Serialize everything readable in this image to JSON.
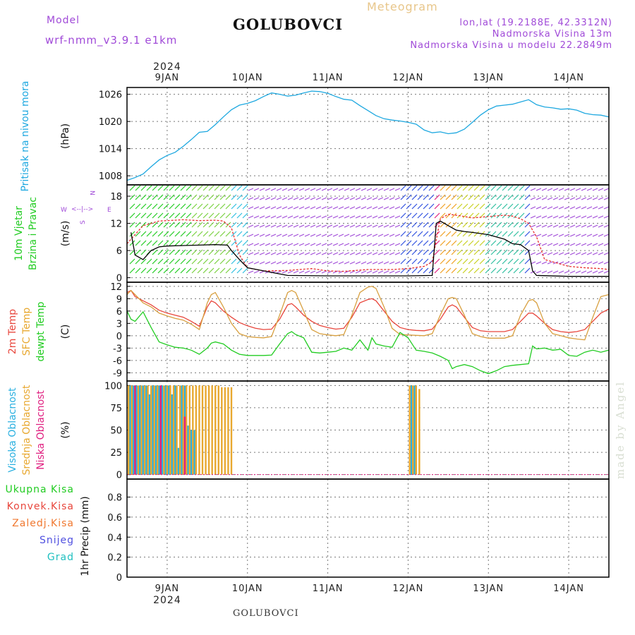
{
  "header": {
    "model_label": "Model",
    "model_name": "wrf-nmm_v3.9.1 e1km",
    "station": "GOLUBOVCI",
    "product": "Meteogram",
    "lonlat": "lon,lat (19.2188E, 42.3312N)",
    "elevation": "Nadmorska Visina 13m",
    "model_elevation": "Nadmorska Visina u modelu 22.2849m"
  },
  "footer": {
    "station": "GOLUBOVCI",
    "watermark": "made by Angel"
  },
  "time_axis": {
    "year": "2024",
    "start_day": 8.5,
    "end_day": 14.5,
    "labels": [
      {
        "day": 9,
        "text": "9JAN"
      },
      {
        "day": 10,
        "text": "10JAN"
      },
      {
        "day": 11,
        "text": "11JAN"
      },
      {
        "day": 12,
        "text": "12JAN"
      },
      {
        "day": 13,
        "text": "13JAN"
      },
      {
        "day": 14,
        "text": "14JAN"
      }
    ]
  },
  "colors": {
    "pressure": "#1ea8e0",
    "temp2m": "#e8463c",
    "sfc": "#d8a040",
    "dewpt": "#22cc22",
    "visoka": "#2ab0e0",
    "srednja": "#e8a830",
    "niska": "#e02080",
    "ukupna": "#22cc22",
    "konvek": "#e8463c",
    "zaledj": "#f07830",
    "snijeg": "#5050e0",
    "grad": "#20c0c0",
    "speed": "#e83030",
    "gust": "#000000",
    "compass": "#a04ad8"
  },
  "chart_data": [
    {
      "type": "line",
      "panel": "pressure",
      "labels": [
        {
          "text": "Pritisak na nivou mora",
          "color": "#1ea8e0"
        }
      ],
      "unit": "(hPa)",
      "ylim": [
        1006,
        1027.5
      ],
      "yticks": [
        1008,
        1014,
        1020,
        1026
      ],
      "series": [
        {
          "key": "slp",
          "color": "#1ea8e0",
          "x": [
            8.5,
            8.6,
            8.7,
            8.8,
            8.9,
            9.0,
            9.1,
            9.2,
            9.3,
            9.4,
            9.5,
            9.6,
            9.7,
            9.8,
            9.9,
            10.0,
            10.1,
            10.2,
            10.3,
            10.4,
            10.5,
            10.6,
            10.7,
            10.8,
            10.9,
            11.0,
            11.1,
            11.2,
            11.3,
            11.4,
            11.5,
            11.6,
            11.7,
            11.8,
            11.9,
            12.0,
            12.1,
            12.2,
            12.3,
            12.4,
            12.5,
            12.6,
            12.7,
            12.8,
            12.9,
            13.0,
            13.1,
            13.2,
            13.3,
            13.4,
            13.5,
            13.6,
            13.7,
            13.8,
            13.9,
            14.0,
            14.1,
            14.2,
            14.3,
            14.4,
            14.5
          ],
          "y": [
            1007.0,
            1007.6,
            1008.4,
            1010.0,
            1011.5,
            1012.5,
            1013.2,
            1014.5,
            1016.0,
            1017.6,
            1017.8,
            1019.3,
            1021.0,
            1022.6,
            1023.6,
            1024.0,
            1024.6,
            1025.5,
            1026.3,
            1026.0,
            1025.6,
            1025.8,
            1026.3,
            1026.7,
            1026.6,
            1026.2,
            1025.5,
            1024.9,
            1024.7,
            1023.5,
            1022.4,
            1021.3,
            1020.6,
            1020.3,
            1020.1,
            1019.8,
            1019.4,
            1018.1,
            1017.5,
            1017.7,
            1017.3,
            1017.5,
            1018.3,
            1019.8,
            1021.4,
            1022.6,
            1023.4,
            1023.6,
            1023.8,
            1024.3,
            1024.8,
            1023.7,
            1023.2,
            1023.0,
            1022.7,
            1022.8,
            1022.5,
            1021.8,
            1021.5,
            1021.4,
            1021.0
          ]
        }
      ]
    },
    {
      "type": "line",
      "panel": "wind",
      "labels": [
        {
          "text": "10m Vjetar",
          "color": "#22cc22"
        },
        {
          "text": "Brzina i Pravac",
          "color": "#22cc22"
        }
      ],
      "unit": "(m/s)",
      "compass": [
        "N",
        "W",
        "E",
        "S",
        "<--|-->"
      ],
      "ylim": [
        -1,
        20.5
      ],
      "yticks": [
        0,
        6,
        12,
        18
      ],
      "series": [
        {
          "key": "speed",
          "color": "#e83030",
          "x": [
            8.5,
            8.6,
            8.7,
            8.8,
            8.9,
            9.0,
            9.2,
            9.4,
            9.6,
            9.7,
            9.8,
            9.9,
            10.0,
            10.2,
            10.5,
            10.8,
            11.0,
            11.2,
            11.5,
            11.8,
            12.0,
            12.2,
            12.3,
            12.4,
            12.5,
            12.6,
            12.7,
            12.8,
            13.0,
            13.2,
            13.3,
            13.4,
            13.5,
            13.6,
            13.7,
            13.8,
            14.0,
            14.2,
            14.4,
            14.5
          ],
          "y": [
            7.5,
            9.5,
            11.5,
            12.0,
            12.5,
            12.6,
            12.8,
            12.6,
            12.7,
            12.5,
            11.0,
            5.0,
            2.2,
            1.5,
            1.6,
            2.0,
            1.5,
            1.4,
            1.8,
            1.8,
            2.0,
            2.5,
            3.5,
            13.0,
            14.0,
            13.8,
            13.5,
            13.2,
            13.5,
            13.8,
            13.6,
            13.0,
            12.0,
            9.0,
            4.0,
            3.5,
            2.5,
            2.2,
            2.0,
            1.8
          ]
        },
        {
          "key": "gust",
          "color": "#000000",
          "x": [
            8.55,
            8.6,
            8.7,
            8.8,
            8.9,
            9.0,
            9.2,
            9.4,
            9.6,
            9.75,
            9.8,
            9.9,
            10.0,
            10.5,
            11.0,
            11.5,
            12.0,
            12.3,
            12.35,
            12.4,
            12.5,
            12.6,
            12.7,
            12.8,
            13.0,
            13.2,
            13.3,
            13.4,
            13.5,
            13.55,
            13.6,
            14.0,
            14.5
          ],
          "y": [
            10.0,
            5.0,
            4.0,
            6.0,
            6.8,
            7.0,
            7.1,
            7.2,
            7.3,
            7.2,
            6.0,
            4.0,
            2.2,
            0.5,
            0.4,
            0.4,
            0.4,
            0.5,
            12.0,
            12.5,
            11.5,
            10.5,
            10.2,
            10.0,
            9.5,
            8.5,
            7.5,
            7.3,
            6.0,
            1.5,
            0.5,
            0.3,
            0.3
          ]
        }
      ]
    },
    {
      "type": "line",
      "panel": "temperature",
      "labels": [
        {
          "text": "2m Temp",
          "color": "#e8463c"
        },
        {
          "text": "SFC Temp",
          "color": "#e8a830"
        },
        {
          "text": "dewpt Temp",
          "color": "#22cc22"
        }
      ],
      "unit": "(C)",
      "ylim": [
        -11,
        13
      ],
      "yticks": [
        12,
        9,
        6,
        3,
        0,
        -3,
        -6,
        -9
      ],
      "series": [
        {
          "key": "t2m",
          "color": "#e8463c",
          "x": [
            8.5,
            8.55,
            8.6,
            8.7,
            8.8,
            8.9,
            9.0,
            9.1,
            9.2,
            9.3,
            9.4,
            9.5,
            9.55,
            9.6,
            9.7,
            9.8,
            9.9,
            10.0,
            10.1,
            10.2,
            10.3,
            10.4,
            10.5,
            10.55,
            10.6,
            10.7,
            10.8,
            10.9,
            11.0,
            11.1,
            11.2,
            11.3,
            11.4,
            11.5,
            11.55,
            11.6,
            11.7,
            11.8,
            11.9,
            12.0,
            12.1,
            12.2,
            12.3,
            12.4,
            12.5,
            12.55,
            12.6,
            12.7,
            12.8,
            12.9,
            13.0,
            13.1,
            13.2,
            13.3,
            13.4,
            13.5,
            13.55,
            13.6,
            13.7,
            13.8,
            13.9,
            14.0,
            14.1,
            14.2,
            14.3,
            14.4,
            14.5
          ],
          "y": [
            10.5,
            11.0,
            9.5,
            8.5,
            7.5,
            6.2,
            5.5,
            5.0,
            4.5,
            3.5,
            2.3,
            7.0,
            8.5,
            8.0,
            6.0,
            4.5,
            3.2,
            2.4,
            1.8,
            1.5,
            1.6,
            4.0,
            7.5,
            7.8,
            7.0,
            5.0,
            3.5,
            2.5,
            2.0,
            1.6,
            1.8,
            4.5,
            8.0,
            8.8,
            9.0,
            8.5,
            6.0,
            3.5,
            2.0,
            1.5,
            1.3,
            1.2,
            1.6,
            4.0,
            7.0,
            7.5,
            7.0,
            4.5,
            2.0,
            1.2,
            1.0,
            1.0,
            1.0,
            1.5,
            3.5,
            5.5,
            5.5,
            4.8,
            3.0,
            1.5,
            1.0,
            0.8,
            1.0,
            1.5,
            3.5,
            5.5,
            6.5
          ]
        },
        {
          "key": "sfc",
          "color": "#d8a040",
          "x": [
            8.5,
            8.55,
            8.6,
            8.7,
            8.8,
            8.9,
            9.0,
            9.1,
            9.2,
            9.3,
            9.4,
            9.5,
            9.55,
            9.6,
            9.7,
            9.8,
            9.9,
            10.0,
            10.1,
            10.2,
            10.3,
            10.4,
            10.5,
            10.55,
            10.6,
            10.7,
            10.8,
            10.9,
            11.0,
            11.1,
            11.2,
            11.3,
            11.4,
            11.5,
            11.55,
            11.6,
            11.7,
            11.8,
            11.9,
            12.0,
            12.1,
            12.2,
            12.3,
            12.4,
            12.5,
            12.55,
            12.6,
            12.7,
            12.8,
            12.9,
            13.0,
            13.1,
            13.2,
            13.3,
            13.4,
            13.5,
            13.55,
            13.6,
            13.7,
            13.8,
            13.9,
            14.0,
            14.1,
            14.2,
            14.3,
            14.4,
            14.5
          ],
          "y": [
            10.0,
            11.0,
            10.0,
            8.0,
            7.0,
            5.5,
            4.8,
            4.2,
            3.8,
            2.8,
            1.5,
            8.0,
            10.0,
            10.5,
            7.0,
            3.0,
            0.5,
            -0.2,
            -0.4,
            -0.5,
            -0.2,
            5.0,
            10.5,
            11.0,
            10.5,
            6.0,
            1.5,
            0.5,
            0.2,
            0.0,
            0.3,
            5.0,
            10.5,
            11.8,
            12.0,
            11.5,
            7.0,
            1.8,
            0.3,
            0.2,
            0.1,
            0.0,
            0.5,
            5.0,
            9.0,
            9.3,
            9.0,
            5.0,
            0.5,
            -0.2,
            -0.6,
            -0.6,
            -0.6,
            0.0,
            5.0,
            8.5,
            8.8,
            8.0,
            3.0,
            0.5,
            0.0,
            -0.5,
            -0.8,
            -1.0,
            4.5,
            9.5,
            10.0
          ]
        },
        {
          "key": "dewpt",
          "color": "#22cc22",
          "x": [
            8.5,
            8.55,
            8.6,
            8.7,
            8.8,
            8.9,
            9.0,
            9.1,
            9.2,
            9.3,
            9.4,
            9.5,
            9.55,
            9.6,
            9.7,
            9.8,
            9.9,
            10.0,
            10.1,
            10.2,
            10.3,
            10.4,
            10.5,
            10.55,
            10.6,
            10.7,
            10.8,
            10.9,
            11.0,
            11.1,
            11.2,
            11.3,
            11.4,
            11.5,
            11.55,
            11.6,
            11.7,
            11.8,
            11.9,
            12.0,
            12.1,
            12.2,
            12.3,
            12.4,
            12.5,
            12.55,
            12.6,
            12.7,
            12.8,
            12.9,
            13.0,
            13.1,
            13.2,
            13.3,
            13.4,
            13.5,
            13.55,
            13.6,
            13.7,
            13.8,
            13.9,
            14.0,
            14.1,
            14.2,
            14.3,
            14.4,
            14.5
          ],
          "y": [
            6.0,
            4.0,
            3.5,
            5.8,
            2.0,
            -1.5,
            -2.2,
            -2.8,
            -3.0,
            -3.5,
            -4.5,
            -3.0,
            -1.8,
            -1.5,
            -2.0,
            -3.5,
            -4.5,
            -4.8,
            -4.8,
            -4.8,
            -4.7,
            -2.0,
            0.5,
            1.0,
            0.3,
            -0.5,
            -4.0,
            -4.2,
            -4.0,
            -3.8,
            -3.0,
            -3.5,
            -1.0,
            -3.5,
            -0.5,
            -2.0,
            -2.5,
            -2.8,
            0.8,
            -0.5,
            -3.5,
            -3.8,
            -4.2,
            -5.0,
            -6.0,
            -8.0,
            -7.5,
            -7.0,
            -7.5,
            -8.5,
            -9.2,
            -8.5,
            -7.5,
            -7.2,
            -7.0,
            -6.8,
            -2.5,
            -3.2,
            -3.0,
            -3.5,
            -3.3,
            -4.8,
            -5.0,
            -4.0,
            -3.5,
            -4.0,
            -3.5
          ]
        }
      ]
    },
    {
      "type": "bar",
      "panel": "clouds",
      "labels": [
        {
          "text": "Visoka Oblacnost",
          "color": "#2ab0e0"
        },
        {
          "text": "Srednja Oblacnost",
          "color": "#e8a830"
        },
        {
          "text": "Niska Oblacnost",
          "color": "#e02080"
        }
      ],
      "unit": "(%)",
      "ylim": [
        -5,
        105
      ],
      "yticks": [
        0,
        25,
        50,
        75,
        100
      ],
      "series": [
        {
          "key": "visoka",
          "color": "#2ab0e0",
          "x": [
            8.54,
            8.58,
            8.62,
            8.66,
            8.7,
            8.74,
            8.78,
            8.82,
            8.86,
            8.9,
            8.94,
            8.98,
            9.02,
            9.06,
            9.1,
            9.14,
            9.18,
            9.22,
            9.26,
            9.3,
            9.34,
            12.04,
            12.08
          ],
          "y": [
            100,
            100,
            100,
            100,
            100,
            100,
            90,
            100,
            100,
            100,
            100,
            100,
            100,
            90,
            100,
            30,
            100,
            100,
            55,
            50,
            50,
            100,
            100
          ]
        },
        {
          "key": "srednja",
          "color": "#e8a830",
          "x": [
            8.52,
            8.56,
            8.6,
            8.64,
            8.68,
            8.72,
            8.76,
            8.8,
            8.84,
            8.88,
            8.92,
            8.96,
            9.0,
            9.04,
            9.08,
            9.12,
            9.16,
            9.2,
            9.24,
            9.28,
            9.32,
            9.36,
            9.4,
            9.44,
            9.48,
            9.52,
            9.56,
            9.6,
            9.64,
            9.68,
            9.72,
            9.76,
            9.8,
            12.02,
            12.06,
            12.1,
            12.14
          ],
          "y": [
            100,
            100,
            100,
            100,
            100,
            100,
            100,
            100,
            100,
            100,
            100,
            100,
            100,
            100,
            100,
            100,
            100,
            100,
            100,
            100,
            100,
            100,
            100,
            100,
            100,
            100,
            100,
            100,
            100,
            98,
            98,
            98,
            98,
            100,
            100,
            100,
            96
          ]
        },
        {
          "key": "niska",
          "color": "#e02080",
          "x": [
            8.6,
            8.92,
            9.22
          ],
          "y": [
            100,
            100,
            65
          ]
        }
      ]
    },
    {
      "type": "bar",
      "panel": "precip",
      "labels": [
        {
          "text": "Ukupna Kisa",
          "color": "#22cc22"
        },
        {
          "text": "Konvek.Kisa",
          "color": "#e8463c"
        },
        {
          "text": "Zaledj.Kisa",
          "color": "#f07830"
        },
        {
          "text": "Snijeg",
          "color": "#5050e0"
        },
        {
          "text": "Grad",
          "color": "#20c0c0"
        }
      ],
      "unit": "1hr Precip (mm)",
      "ylim": [
        0,
        0.98
      ],
      "yticks": [
        0,
        0.2,
        0.4,
        0.6,
        0.8
      ],
      "series": []
    }
  ]
}
